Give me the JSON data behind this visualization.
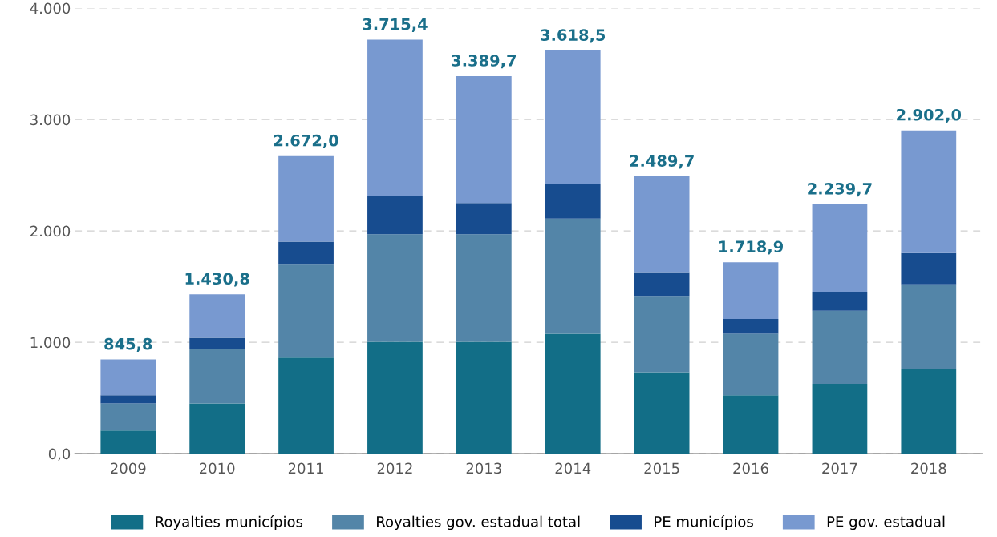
{
  "chart_data": {
    "type": "bar",
    "stacked": true,
    "categories": [
      "2009",
      "2010",
      "2011",
      "2012",
      "2013",
      "2014",
      "2015",
      "2016",
      "2017",
      "2018"
    ],
    "series": [
      {
        "name": "Royalties municípios",
        "color": "#126e87",
        "values": [
          207,
          450,
          863,
          1004,
          1004,
          1077,
          731,
          524,
          627,
          760
        ]
      },
      {
        "name": "Royalties gov. estadual total",
        "color": "#5385a8",
        "values": [
          243,
          487,
          834,
          966,
          966,
          1034,
          686,
          553,
          657,
          760
        ]
      },
      {
        "name": "PE municípios",
        "color": "#174c8f",
        "values": [
          74,
          104,
          207,
          347,
          281,
          310,
          214,
          133,
          170,
          281
        ]
      },
      {
        "name": "PE gov. estadual",
        "color": "#7899d0",
        "values": [
          321.8,
          389.8,
          768,
          1398.4,
          1138.7,
          1197.5,
          858.7,
          508.9,
          785.7,
          1101
        ]
      }
    ],
    "totals": [
      "845,8",
      "1.430,8",
      "2.672,0",
      "3.715,4",
      "3.389,7",
      "3.618,5",
      "2.489,7",
      "1.718,9",
      "2.239,7",
      "2.902,0"
    ],
    "ylim": [
      0,
      4000
    ],
    "yticks": [
      {
        "value": 0,
        "label": "0,0"
      },
      {
        "value": 1000,
        "label": "1.000"
      },
      {
        "value": 2000,
        "label": "2.000"
      },
      {
        "value": 3000,
        "label": "3.000"
      },
      {
        "value": 4000,
        "label": "4.000"
      }
    ],
    "grid": "y",
    "legend": "bottom"
  }
}
